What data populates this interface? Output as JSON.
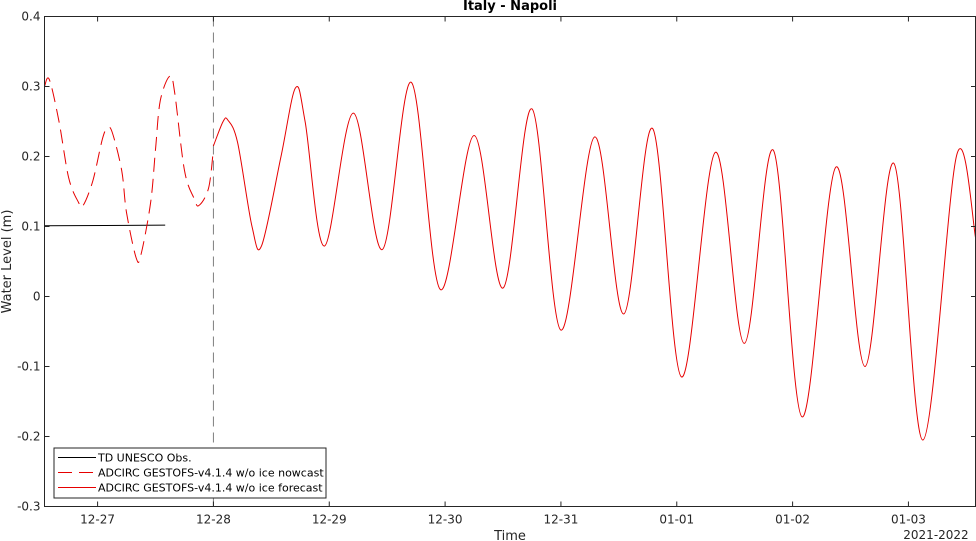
{
  "chart_data": {
    "type": "line",
    "title": "Italy - Napoli",
    "xlabel": "Time",
    "ylabel": "Water Level (m)",
    "year_label": "2021-2022",
    "ylim": [
      -0.3,
      0.4
    ],
    "xlim": [
      "2021-12-26T13:00",
      "2022-01-03T14:00"
    ],
    "y_ticks": [
      "0.4",
      "0.3",
      "0.2",
      "0.1",
      "0",
      "-0.1",
      "-0.2",
      "-0.3"
    ],
    "x_ticks": [
      "12-27",
      "12-28",
      "12-29",
      "12-30",
      "12-31",
      "01-01",
      "01-02",
      "01-03"
    ],
    "nowcast_end": "2021-12-28T00:00",
    "grid": false,
    "legend_position": "bottom-left",
    "series": [
      {
        "name": "TD UNESCO Obs.",
        "color": "#000000",
        "style": "solid",
        "points": [
          [
            "2021-12-26T13:00",
            0.101
          ],
          [
            "2021-12-27T14:00",
            0.102
          ]
        ]
      },
      {
        "name": "ADCIRC GESTOFS-v4.1.4 w/o ice nowcast",
        "color": "#e60000",
        "style": "dashed",
        "points": [
          [
            "2021-12-26T13:00",
            0.3
          ],
          [
            "2021-12-26T14:00",
            0.31
          ],
          [
            "2021-12-26T16:00",
            0.25
          ],
          [
            "2021-12-26T18:00",
            0.17
          ],
          [
            "2021-12-26T20:00",
            0.135
          ],
          [
            "2021-12-26T21:00",
            0.13
          ],
          [
            "2021-12-26T23:00",
            0.165
          ],
          [
            "2021-12-27T01:00",
            0.225
          ],
          [
            "2021-12-27T02:00",
            0.24
          ],
          [
            "2021-12-27T03:00",
            0.235
          ],
          [
            "2021-12-27T05:00",
            0.18
          ],
          [
            "2021-12-27T06:00",
            0.12
          ],
          [
            "2021-12-27T08:00",
            0.055
          ],
          [
            "2021-12-27T09:00",
            0.06
          ],
          [
            "2021-12-27T11:00",
            0.135
          ],
          [
            "2021-12-27T12:00",
            0.21
          ],
          [
            "2021-12-27T13:00",
            0.28
          ],
          [
            "2021-12-27T15:00",
            0.315
          ],
          [
            "2021-12-27T16:00",
            0.29
          ],
          [
            "2021-12-27T18:00",
            0.18
          ],
          [
            "2021-12-27T20:00",
            0.14
          ],
          [
            "2021-12-27T21:00",
            0.13
          ],
          [
            "2021-12-27T23:00",
            0.155
          ],
          [
            "2021-12-28T00:00",
            0.21
          ]
        ]
      },
      {
        "name": "ADCIRC GESTOFS-v4.1.4 w/o ice forecast",
        "color": "#e60000",
        "style": "solid",
        "points": [
          [
            "2021-12-28T00:00",
            0.215
          ],
          [
            "2021-12-28T02:00",
            0.25
          ],
          [
            "2021-12-28T03:00",
            0.252
          ],
          [
            "2021-12-28T05:00",
            0.22
          ],
          [
            "2021-12-28T08:00",
            0.1
          ],
          [
            "2021-12-28T10:00",
            0.073
          ],
          [
            "2021-12-28T14:00",
            0.2
          ],
          [
            "2021-12-28T17:00",
            0.298
          ],
          [
            "2021-12-28T19:00",
            0.25
          ],
          [
            "2021-12-28T23:00",
            0.072
          ],
          [
            "2021-12-29T05:00",
            0.262
          ],
          [
            "2021-12-29T11:00",
            0.067
          ],
          [
            "2021-12-29T17:00",
            0.306
          ],
          [
            "2021-12-29T23:00",
            0.01
          ],
          [
            "2021-12-30T06:00",
            0.23
          ],
          [
            "2021-12-30T12:00",
            0.012
          ],
          [
            "2021-12-30T18:00",
            0.268
          ],
          [
            "2021-12-31T00:00",
            -0.048
          ],
          [
            "2021-12-31T07:00",
            0.228
          ],
          [
            "2021-12-31T13:00",
            -0.025
          ],
          [
            "2021-12-31T19:00",
            0.24
          ],
          [
            "2022-01-01T01:00",
            -0.115
          ],
          [
            "2022-01-01T08:00",
            0.206
          ],
          [
            "2022-01-01T14:00",
            -0.067
          ],
          [
            "2022-01-01T20:00",
            0.209
          ],
          [
            "2022-01-02T02:00",
            -0.172
          ],
          [
            "2022-01-02T09:00",
            0.185
          ],
          [
            "2022-01-02T15:00",
            -0.1
          ],
          [
            "2022-01-02T21:00",
            0.19
          ],
          [
            "2022-01-03T03:00",
            -0.205
          ],
          [
            "2022-01-03T10:00",
            0.202
          ],
          [
            "2022-01-03T14:00",
            0.08
          ]
        ]
      }
    ]
  }
}
